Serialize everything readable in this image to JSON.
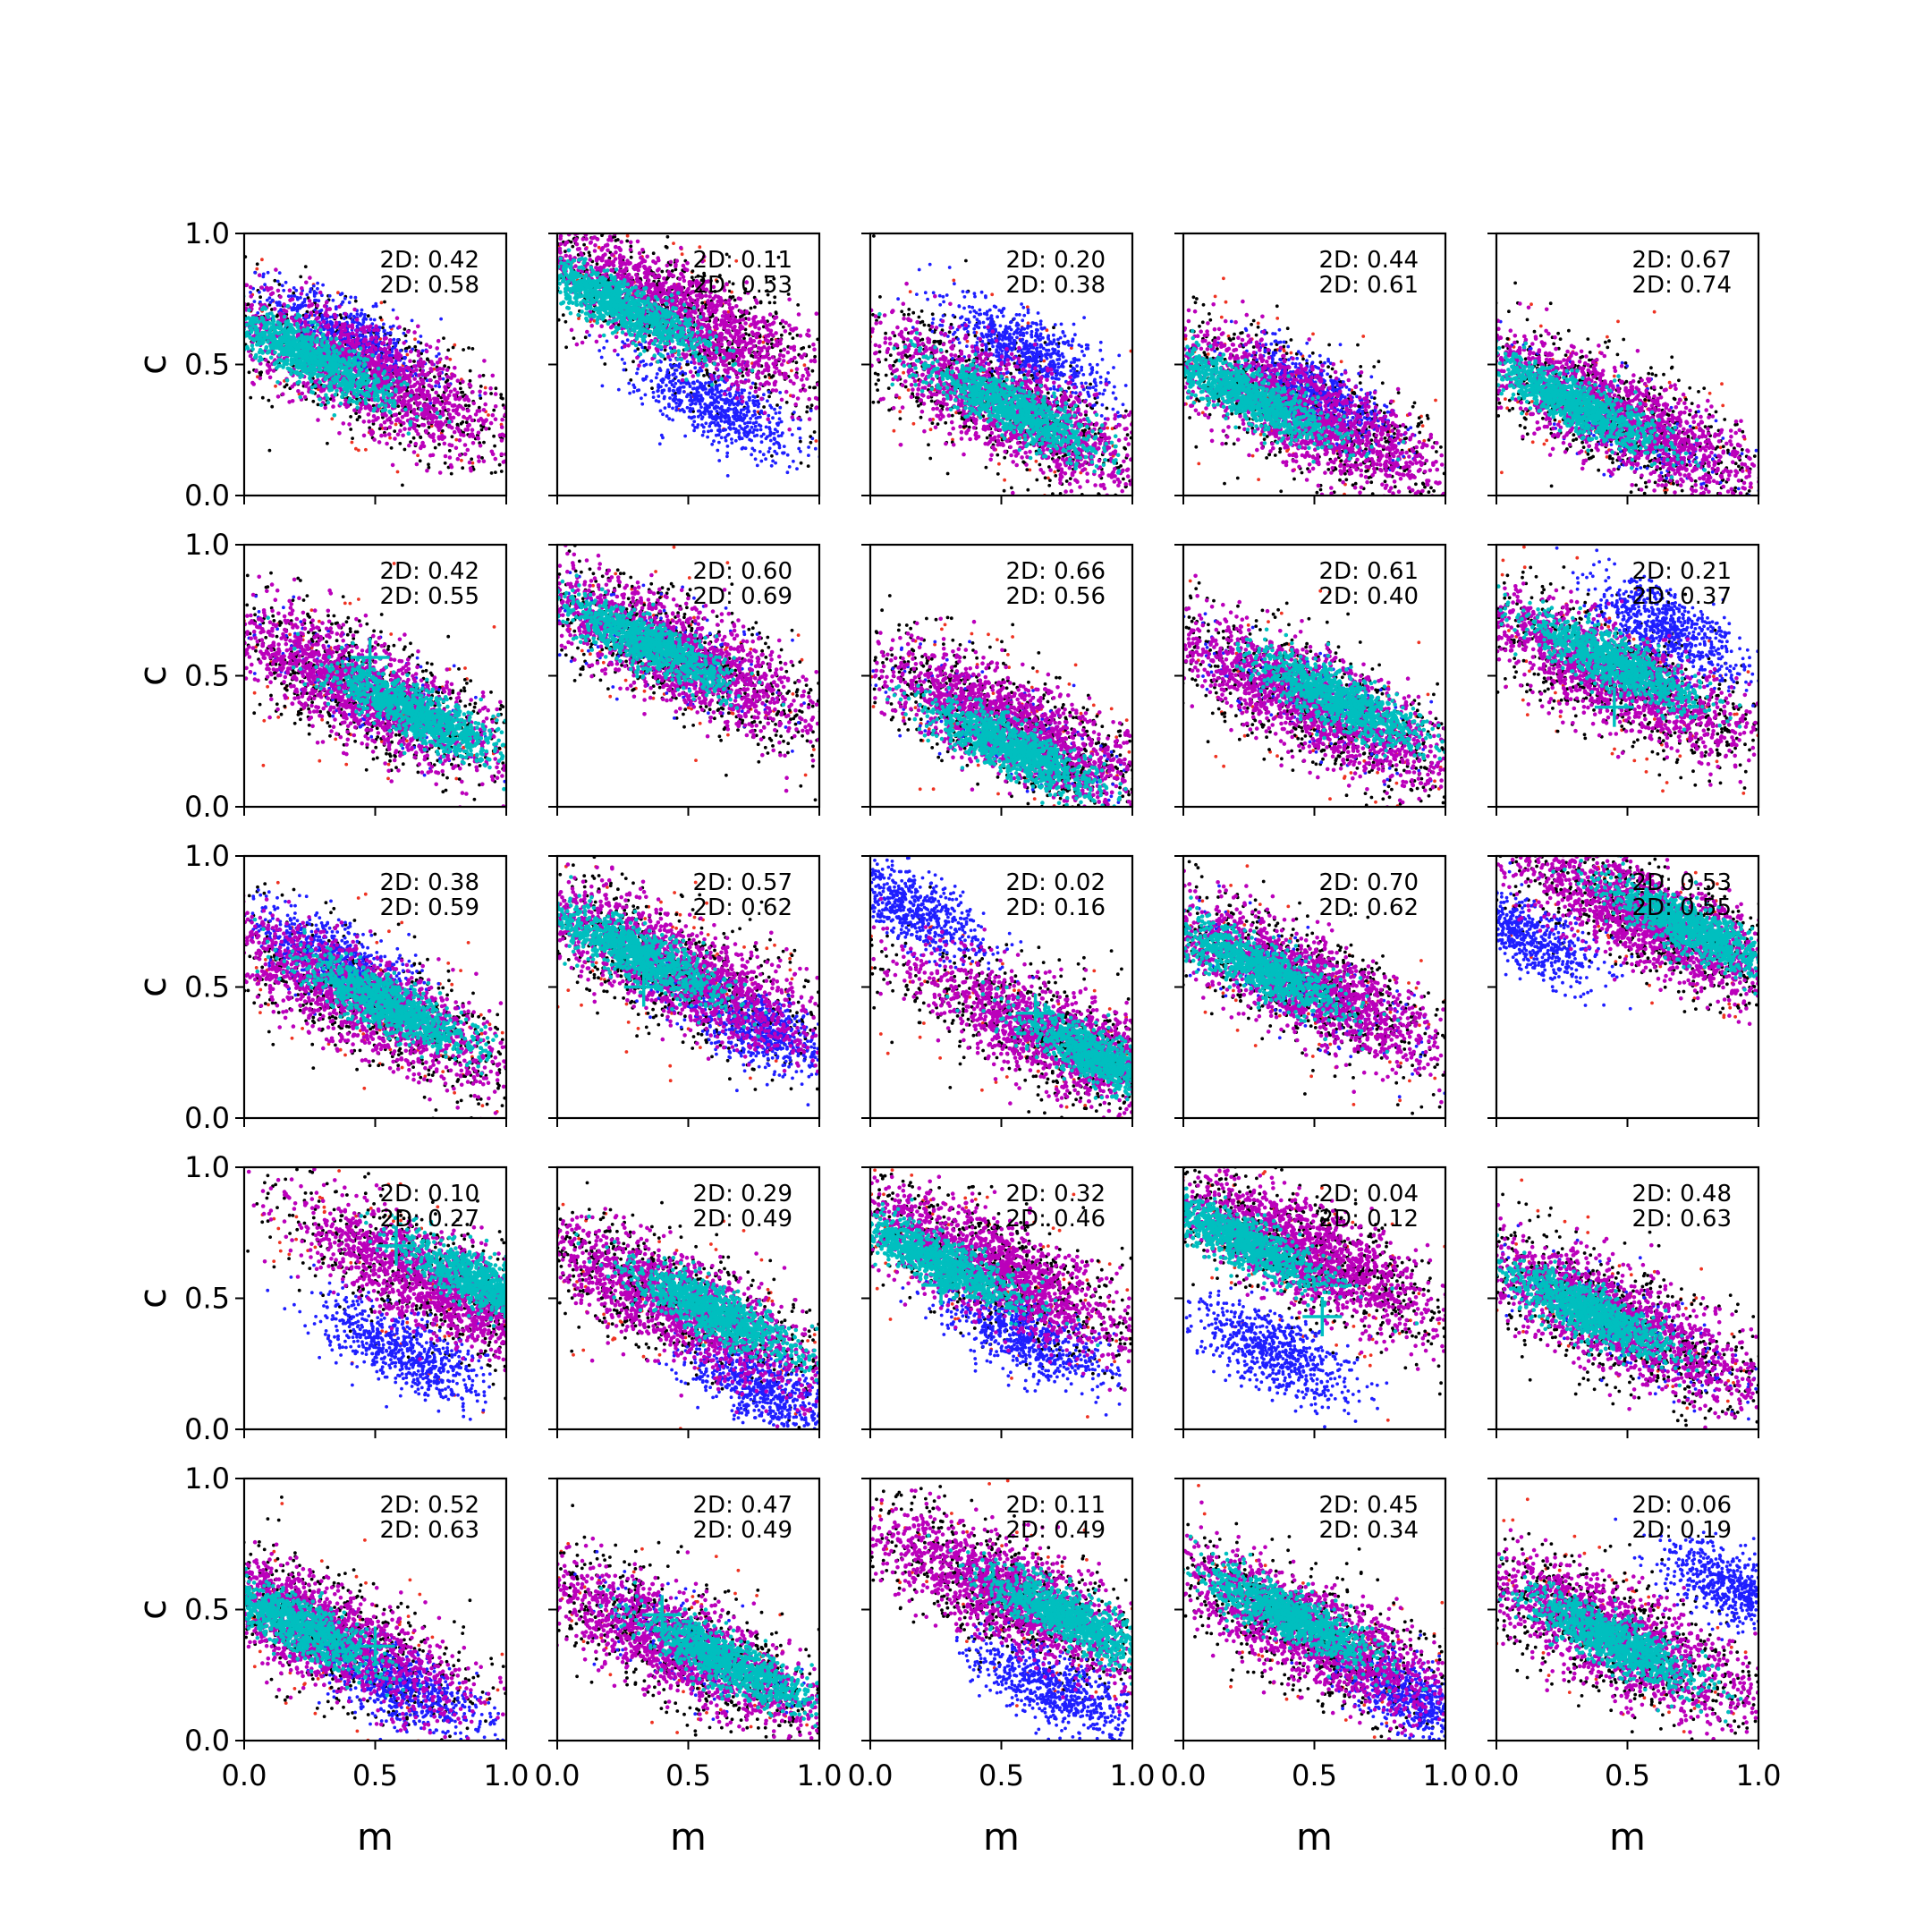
{
  "colors": {
    "red": "#ee3322",
    "black": "#000000",
    "blue": "#1f1fff",
    "magenta": "#bb00bb",
    "cyan": "#00bfbf",
    "marker": "#00bfbf"
  },
  "chart_data": {
    "type": "scatter",
    "rows": 5,
    "cols": 5,
    "xlabel": "m",
    "ylabel": "c",
    "xlim": [
      0.0,
      1.0
    ],
    "ylim": [
      0.0,
      1.0
    ],
    "xticks": [
      "0.0",
      "0.5",
      "1.0"
    ],
    "yticks": [
      "0.0",
      "0.5",
      "1.0"
    ],
    "series_order": [
      "red",
      "black",
      "blue",
      "magenta",
      "cyan"
    ],
    "panels": [
      {
        "label1": "2D: 0.42",
        "label2": "2D: 0.58",
        "cyan": [
          0.25,
          0.53
        ],
        "magenta": [
          0.45,
          0.47
        ],
        "blue": [
          0.4,
          0.6
        ],
        "marker": null
      },
      {
        "label1": "2D: 0.11",
        "label2": "2D: 0.53",
        "cyan": [
          0.25,
          0.72
        ],
        "magenta": [
          0.45,
          0.7
        ],
        "blue": [
          0.6,
          0.35
        ],
        "marker": null
      },
      {
        "label1": "2D: 0.20",
        "label2": "2D: 0.38",
        "cyan": [
          0.55,
          0.33
        ],
        "magenta": [
          0.55,
          0.33
        ],
        "blue": [
          0.6,
          0.55
        ],
        "marker": null
      },
      {
        "label1": "2D: 0.44",
        "label2": "2D: 0.61",
        "cyan": [
          0.25,
          0.38
        ],
        "magenta": [
          0.45,
          0.32
        ],
        "blue": [
          0.5,
          0.38
        ],
        "marker": null
      },
      {
        "label1": "2D: 0.67",
        "label2": "2D: 0.74",
        "cyan": [
          0.3,
          0.35
        ],
        "magenta": [
          0.45,
          0.3
        ],
        "blue": [
          0.45,
          0.3
        ],
        "marker": null
      },
      {
        "label1": "2D: 0.42",
        "label2": "2D: 0.55",
        "cyan": [
          0.65,
          0.36
        ],
        "magenta": [
          0.45,
          0.45
        ],
        "blue": [
          0.45,
          0.45
        ],
        "marker": [
          0.48,
          0.57
        ]
      },
      {
        "label1": "2D: 0.60",
        "label2": "2D: 0.69",
        "cyan": [
          0.35,
          0.62
        ],
        "magenta": [
          0.45,
          0.58
        ],
        "blue": [
          0.45,
          0.58
        ],
        "marker": null
      },
      {
        "label1": "2D: 0.66",
        "label2": "2D: 0.56",
        "cyan": [
          0.55,
          0.22
        ],
        "magenta": [
          0.55,
          0.3
        ],
        "blue": [
          0.55,
          0.3
        ],
        "marker": null
      },
      {
        "label1": "2D: 0.61",
        "label2": "2D: 0.40",
        "cyan": [
          0.6,
          0.4
        ],
        "magenta": [
          0.5,
          0.4
        ],
        "blue": [
          0.5,
          0.4
        ],
        "marker": null
      },
      {
        "label1": "2D: 0.21",
        "label2": "2D: 0.37",
        "cyan": [
          0.45,
          0.55
        ],
        "magenta": [
          0.45,
          0.5
        ],
        "blue": [
          0.65,
          0.68
        ],
        "marker": [
          0.45,
          0.38
        ]
      },
      {
        "label1": "2D: 0.38",
        "label2": "2D: 0.59",
        "cyan": [
          0.55,
          0.43
        ],
        "magenta": [
          0.45,
          0.45
        ],
        "blue": [
          0.35,
          0.6
        ],
        "marker": null
      },
      {
        "label1": "2D: 0.57",
        "label2": "2D: 0.62",
        "cyan": [
          0.3,
          0.63
        ],
        "magenta": [
          0.45,
          0.57
        ],
        "blue": [
          0.75,
          0.35
        ],
        "marker": [
          0.33,
          0.5
        ]
      },
      {
        "label1": "2D: 0.02",
        "label2": "2D: 0.16",
        "cyan": [
          0.9,
          0.22
        ],
        "magenta": [
          0.72,
          0.3
        ],
        "blue": [
          0.15,
          0.8
        ],
        "marker": [
          0.63,
          0.4
        ]
      },
      {
        "label1": "2D: 0.70",
        "label2": "2D: 0.62",
        "cyan": [
          0.3,
          0.57
        ],
        "magenta": [
          0.45,
          0.52
        ],
        "blue": [
          0.45,
          0.52
        ],
        "marker": null
      },
      {
        "label1": "2D: 0.53",
        "label2": "2D: 0.55",
        "cyan": [
          0.75,
          0.72
        ],
        "magenta": [
          0.6,
          0.75
        ],
        "blue": [
          0.1,
          0.7
        ],
        "marker": null
      },
      {
        "label1": "2D: 0.10",
        "label2": "2D: 0.27",
        "cyan": [
          0.92,
          0.55
        ],
        "magenta": [
          0.75,
          0.55
        ],
        "blue": [
          0.6,
          0.3
        ],
        "marker": [
          0.58,
          0.7
        ]
      },
      {
        "label1": "2D: 0.29",
        "label2": "2D: 0.49",
        "cyan": [
          0.6,
          0.45
        ],
        "magenta": [
          0.45,
          0.48
        ],
        "blue": [
          0.8,
          0.15
        ],
        "marker": null
      },
      {
        "label1": "2D: 0.32",
        "label2": "2D: 0.46",
        "cyan": [
          0.25,
          0.65
        ],
        "magenta": [
          0.45,
          0.62
        ],
        "blue": [
          0.6,
          0.35
        ],
        "marker": [
          0.27,
          0.55
        ]
      },
      {
        "label1": "2D: 0.04",
        "label2": "2D: 0.12",
        "cyan": [
          0.22,
          0.72
        ],
        "magenta": [
          0.45,
          0.68
        ],
        "blue": [
          0.35,
          0.3
        ],
        "marker": [
          0.53,
          0.43
        ]
      },
      {
        "label1": "2D: 0.48",
        "label2": "2D: 0.63",
        "cyan": [
          0.35,
          0.45
        ],
        "magenta": [
          0.45,
          0.42
        ],
        "blue": [
          0.45,
          0.42
        ],
        "marker": null
      },
      {
        "label1": "2D: 0.52",
        "label2": "2D: 0.63",
        "cyan": [
          0.18,
          0.45
        ],
        "magenta": [
          0.3,
          0.42
        ],
        "blue": [
          0.6,
          0.2
        ],
        "marker": [
          0.5,
          0.36
        ]
      },
      {
        "label1": "2D: 0.47",
        "label2": "2D: 0.49",
        "cyan": [
          0.65,
          0.3
        ],
        "magenta": [
          0.5,
          0.35
        ],
        "blue": [
          0.5,
          0.35
        ],
        "marker": [
          0.4,
          0.48
        ]
      },
      {
        "label1": "2D: 0.11",
        "label2": "2D: 0.49",
        "cyan": [
          0.75,
          0.47
        ],
        "magenta": [
          0.55,
          0.55
        ],
        "blue": [
          0.7,
          0.2
        ],
        "marker": null
      },
      {
        "label1": "2D: 0.45",
        "label2": "2D: 0.34",
        "cyan": [
          0.4,
          0.48
        ],
        "magenta": [
          0.5,
          0.4
        ],
        "blue": [
          0.9,
          0.15
        ],
        "marker": null
      },
      {
        "label1": "2D: 0.06",
        "label2": "2D: 0.19",
        "cyan": [
          0.45,
          0.38
        ],
        "magenta": [
          0.45,
          0.4
        ],
        "blue": [
          0.92,
          0.58
        ],
        "marker": null
      }
    ]
  }
}
